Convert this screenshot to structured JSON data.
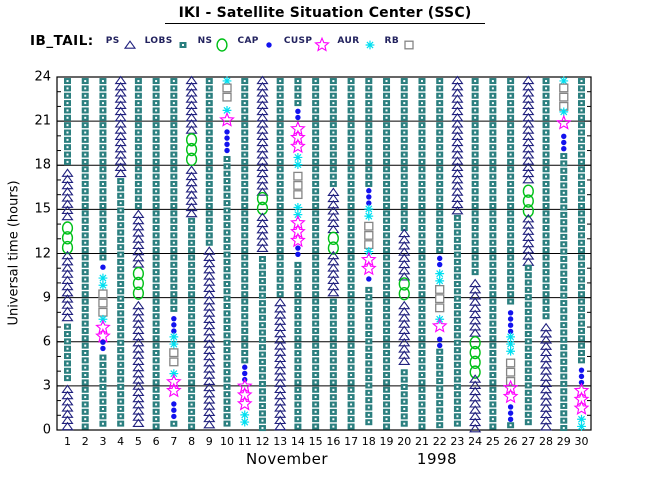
{
  "window": {
    "title": "IKI - Satellite Situation Center (SSC)"
  },
  "header": {
    "title": "IKI - Satellite Situation Center (SSC)"
  },
  "legend": {
    "label": "IB_TAIL:",
    "items": [
      {
        "label": "PS",
        "region": "PS"
      },
      {
        "label": "LOBS",
        "region": "LOBS"
      },
      {
        "label": "NS",
        "region": "NS"
      },
      {
        "label": "CAP",
        "region": "CAP"
      },
      {
        "label": "CUSP",
        "region": "CUSP"
      },
      {
        "label": "AUR",
        "region": "AUR"
      },
      {
        "label": "RB",
        "region": "RB"
      }
    ]
  },
  "chart_data": {
    "type": "scatter",
    "subtype": "daily-region-occupancy-columns",
    "title": "IKI - Satellite Situation Center (SSC)",
    "dataset_label": "IB_TAIL:",
    "xlabel_month": "November",
    "xlabel_year": "1998",
    "ylabel": "Universal time  (hours)",
    "ylim": [
      0,
      24
    ],
    "y_major_ticks": [
      0,
      3,
      6,
      9,
      12,
      15,
      18,
      21,
      24
    ],
    "y_minor_tick_step": 1,
    "x_ticks": [
      1,
      2,
      3,
      4,
      5,
      6,
      7,
      8,
      9,
      10,
      11,
      12,
      13,
      14,
      15,
      16,
      17,
      18,
      19,
      20,
      21,
      22,
      23,
      24,
      25,
      26,
      27,
      28,
      29,
      30
    ],
    "grid": "horizontal-every-3h",
    "legend_position": "top-left",
    "regions": {
      "PS": {
        "marker": "open-triangle",
        "color": "#20207e"
      },
      "LOBS": {
        "marker": "filled-square-dotted",
        "color": "#2b7f7f"
      },
      "NS": {
        "marker": "open-circle",
        "color": "#00c018"
      },
      "CAP": {
        "marker": "filled-circle",
        "color": "#1212ee"
      },
      "CUSP": {
        "marker": "open-star",
        "color": "#ff00ff"
      },
      "AUR": {
        "marker": "asterisk",
        "color": "#00dff0"
      },
      "RB": {
        "marker": "open-square",
        "color": "#858585"
      }
    },
    "days": [
      {
        "day": 1,
        "segments": [
          {
            "region": "LOBS",
            "from": 24,
            "to": 17.7
          },
          {
            "region": "PS",
            "from": 17.7,
            "to": 14.1
          },
          {
            "region": "NS",
            "from": 14.1,
            "to": 12.1
          },
          {
            "region": "PS",
            "from": 12.1,
            "to": 7.3
          },
          {
            "region": "LOBS",
            "from": 7.3,
            "to": 3.0
          },
          {
            "region": "PS",
            "from": 3.0,
            "to": 0
          }
        ]
      },
      {
        "day": 2,
        "segments": [
          {
            "region": "LOBS",
            "from": 24,
            "to": 0
          }
        ]
      },
      {
        "day": 3,
        "segments": [
          {
            "region": "LOBS",
            "from": 24,
            "to": 11.3
          },
          {
            "region": "CAP",
            "from": 11.3,
            "to": 10.6
          },
          {
            "region": "AUR",
            "from": 10.6,
            "to": 9.6
          },
          {
            "region": "RB",
            "from": 9.6,
            "to": 7.8
          },
          {
            "region": "AUR",
            "from": 7.8,
            "to": 7.3
          },
          {
            "region": "CUSP",
            "from": 7.3,
            "to": 6.2
          },
          {
            "region": "CAP",
            "from": 6.2,
            "to": 5.2
          },
          {
            "region": "LOBS",
            "from": 5.2,
            "to": 0
          }
        ]
      },
      {
        "day": 4,
        "segments": [
          {
            "region": "PS",
            "from": 24,
            "to": 17.2
          },
          {
            "region": "LOBS",
            "from": 17.2,
            "to": 0
          }
        ]
      },
      {
        "day": 5,
        "segments": [
          {
            "region": "LOBS",
            "from": 24,
            "to": 14.9
          },
          {
            "region": "PS",
            "from": 14.9,
            "to": 11.0
          },
          {
            "region": "NS",
            "from": 11.0,
            "to": 8.7
          },
          {
            "region": "PS",
            "from": 8.7,
            "to": 0
          }
        ]
      },
      {
        "day": 6,
        "segments": [
          {
            "region": "LOBS",
            "from": 24,
            "to": 0
          }
        ]
      },
      {
        "day": 7,
        "segments": [
          {
            "region": "LOBS",
            "from": 24,
            "to": 7.8
          },
          {
            "region": "CAP",
            "from": 7.8,
            "to": 6.6
          },
          {
            "region": "AUR",
            "from": 6.6,
            "to": 5.6
          },
          {
            "region": "RB",
            "from": 5.6,
            "to": 4.1
          },
          {
            "region": "AUR",
            "from": 4.1,
            "to": 3.6
          },
          {
            "region": "CUSP",
            "from": 3.6,
            "to": 2.0
          },
          {
            "region": "CAP",
            "from": 2.0,
            "to": 0.7
          },
          {
            "region": "LOBS",
            "from": 0.7,
            "to": 0
          }
        ]
      },
      {
        "day": 8,
        "segments": [
          {
            "region": "PS",
            "from": 24,
            "to": 20.1
          },
          {
            "region": "NS",
            "from": 20.1,
            "to": 17.9
          },
          {
            "region": "PS",
            "from": 17.9,
            "to": 14.5
          },
          {
            "region": "LOBS",
            "from": 14.5,
            "to": 0
          }
        ]
      },
      {
        "day": 9,
        "segments": [
          {
            "region": "LOBS",
            "from": 24,
            "to": 12.4
          },
          {
            "region": "PS",
            "from": 12.4,
            "to": 0
          }
        ]
      },
      {
        "day": 10,
        "segments": [
          {
            "region": "AUR",
            "from": 24,
            "to": 23.6
          },
          {
            "region": "RB",
            "from": 23.6,
            "to": 22.0
          },
          {
            "region": "AUR",
            "from": 22.0,
            "to": 21.4
          },
          {
            "region": "CUSP",
            "from": 21.4,
            "to": 20.5
          },
          {
            "region": "CAP",
            "from": 20.5,
            "to": 18.7
          },
          {
            "region": "LOBS",
            "from": 18.7,
            "to": 0
          }
        ]
      },
      {
        "day": 11,
        "segments": [
          {
            "region": "LOBS",
            "from": 24,
            "to": 4.5
          },
          {
            "region": "CAP",
            "from": 4.5,
            "to": 3.3
          },
          {
            "region": "CUSP",
            "from": 3.3,
            "to": 1.3
          },
          {
            "region": "AUR",
            "from": 1.3,
            "to": 0.1
          }
        ]
      },
      {
        "day": 12,
        "segments": [
          {
            "region": "PS",
            "from": 24,
            "to": 16.1
          },
          {
            "region": "NS",
            "from": 16.1,
            "to": 14.7
          },
          {
            "region": "PS",
            "from": 14.7,
            "to": 11.9
          },
          {
            "region": "LOBS",
            "from": 11.9,
            "to": 0
          }
        ]
      },
      {
        "day": 13,
        "segments": [
          {
            "region": "LOBS",
            "from": 24,
            "to": 8.9
          },
          {
            "region": "PS",
            "from": 8.9,
            "to": 0
          }
        ]
      },
      {
        "day": 14,
        "segments": [
          {
            "region": "LOBS",
            "from": 24,
            "to": 21.9
          },
          {
            "region": "CAP",
            "from": 21.9,
            "to": 20.8
          },
          {
            "region": "CUSP",
            "from": 20.8,
            "to": 18.8
          },
          {
            "region": "AUR",
            "from": 18.8,
            "to": 17.6
          },
          {
            "region": "RB",
            "from": 17.6,
            "to": 15.4
          },
          {
            "region": "AUR",
            "from": 15.4,
            "to": 14.4
          },
          {
            "region": "CUSP",
            "from": 14.4,
            "to": 12.6
          },
          {
            "region": "CAP",
            "from": 12.6,
            "to": 11.5
          },
          {
            "region": "LOBS",
            "from": 11.5,
            "to": 0
          }
        ]
      },
      {
        "day": 15,
        "segments": [
          {
            "region": "LOBS",
            "from": 24,
            "to": 0
          }
        ]
      },
      {
        "day": 16,
        "segments": [
          {
            "region": "LOBS",
            "from": 24,
            "to": 16.4
          },
          {
            "region": "PS",
            "from": 16.4,
            "to": 13.4
          },
          {
            "region": "NS",
            "from": 13.4,
            "to": 12.1
          },
          {
            "region": "PS",
            "from": 12.1,
            "to": 9.0
          },
          {
            "region": "LOBS",
            "from": 9.0,
            "to": 0
          }
        ]
      },
      {
        "day": 17,
        "segments": [
          {
            "region": "LOBS",
            "from": 24,
            "to": 0
          }
        ]
      },
      {
        "day": 18,
        "segments": [
          {
            "region": "LOBS",
            "from": 24,
            "to": 16.5
          },
          {
            "region": "CAP",
            "from": 16.5,
            "to": 15.3
          },
          {
            "region": "AUR",
            "from": 15.3,
            "to": 14.2
          },
          {
            "region": "RB",
            "from": 14.2,
            "to": 12.4
          },
          {
            "region": "AUR",
            "from": 12.4,
            "to": 11.9
          },
          {
            "region": "CUSP",
            "from": 11.9,
            "to": 10.5
          },
          {
            "region": "CAP",
            "from": 10.5,
            "to": 9.8
          },
          {
            "region": "LOBS",
            "from": 9.8,
            "to": 0
          }
        ]
      },
      {
        "day": 19,
        "segments": [
          {
            "region": "LOBS",
            "from": 24,
            "to": 0
          }
        ]
      },
      {
        "day": 20,
        "segments": [
          {
            "region": "LOBS",
            "from": 24,
            "to": 13.6
          },
          {
            "region": "PS",
            "from": 13.6,
            "to": 10.3
          },
          {
            "region": "NS",
            "from": 10.3,
            "to": 8.7
          },
          {
            "region": "PS",
            "from": 8.7,
            "to": 4.2
          },
          {
            "region": "LOBS",
            "from": 4.2,
            "to": 0
          }
        ]
      },
      {
        "day": 21,
        "segments": [
          {
            "region": "LOBS",
            "from": 24,
            "to": 0
          }
        ]
      },
      {
        "day": 22,
        "segments": [
          {
            "region": "LOBS",
            "from": 24,
            "to": 11.9
          },
          {
            "region": "CAP",
            "from": 11.9,
            "to": 10.9
          },
          {
            "region": "AUR",
            "from": 10.9,
            "to": 9.9
          },
          {
            "region": "RB",
            "from": 9.9,
            "to": 7.8
          },
          {
            "region": "AUR",
            "from": 7.8,
            "to": 7.4
          },
          {
            "region": "CUSP",
            "from": 7.4,
            "to": 6.4
          },
          {
            "region": "CAP",
            "from": 6.4,
            "to": 5.6
          },
          {
            "region": "LOBS",
            "from": 5.6,
            "to": 0
          }
        ]
      },
      {
        "day": 23,
        "segments": [
          {
            "region": "PS",
            "from": 24,
            "to": 14.7
          },
          {
            "region": "LOBS",
            "from": 14.7,
            "to": 0
          }
        ]
      },
      {
        "day": 24,
        "segments": [
          {
            "region": "LOBS",
            "from": 24,
            "to": 10.2
          },
          {
            "region": "PS",
            "from": 10.2,
            "to": 6.3
          },
          {
            "region": "NS",
            "from": 6.3,
            "to": 3.7
          },
          {
            "region": "PS",
            "from": 3.7,
            "to": 0
          }
        ]
      },
      {
        "day": 25,
        "segments": [
          {
            "region": "LOBS",
            "from": 24,
            "to": 0
          }
        ]
      },
      {
        "day": 26,
        "segments": [
          {
            "region": "LOBS",
            "from": 24,
            "to": 8.2
          },
          {
            "region": "CAP",
            "from": 8.2,
            "to": 6.6
          },
          {
            "region": "AUR",
            "from": 6.6,
            "to": 4.9
          },
          {
            "region": "RB",
            "from": 4.9,
            "to": 3.2
          },
          {
            "region": "CUSP",
            "from": 3.2,
            "to": 1.8
          },
          {
            "region": "CAP",
            "from": 1.8,
            "to": 0.6
          },
          {
            "region": "LOBS",
            "from": 0.6,
            "to": 0
          }
        ]
      },
      {
        "day": 27,
        "segments": [
          {
            "region": "PS",
            "from": 24,
            "to": 16.6
          },
          {
            "region": "NS",
            "from": 16.6,
            "to": 14.6
          },
          {
            "region": "PS",
            "from": 14.6,
            "to": 11.3
          },
          {
            "region": "LOBS",
            "from": 11.3,
            "to": 0
          }
        ]
      },
      {
        "day": 28,
        "segments": [
          {
            "region": "LOBS",
            "from": 24,
            "to": 7.2
          },
          {
            "region": "PS",
            "from": 7.2,
            "to": 0
          }
        ]
      },
      {
        "day": 29,
        "segments": [
          {
            "region": "AUR",
            "from": 24,
            "to": 23.6
          },
          {
            "region": "RB",
            "from": 23.6,
            "to": 21.9
          },
          {
            "region": "AUR",
            "from": 21.9,
            "to": 21.2
          },
          {
            "region": "CUSP",
            "from": 21.2,
            "to": 20.2
          },
          {
            "region": "CAP",
            "from": 20.2,
            "to": 18.9
          },
          {
            "region": "LOBS",
            "from": 18.9,
            "to": 0
          }
        ]
      },
      {
        "day": 30,
        "segments": [
          {
            "region": "LOBS",
            "from": 24,
            "to": 4.3
          },
          {
            "region": "CAP",
            "from": 4.3,
            "to": 3.0
          },
          {
            "region": "CUSP",
            "from": 3.0,
            "to": 1.0
          },
          {
            "region": "AUR",
            "from": 1.0,
            "to": 0
          }
        ]
      }
    ]
  }
}
